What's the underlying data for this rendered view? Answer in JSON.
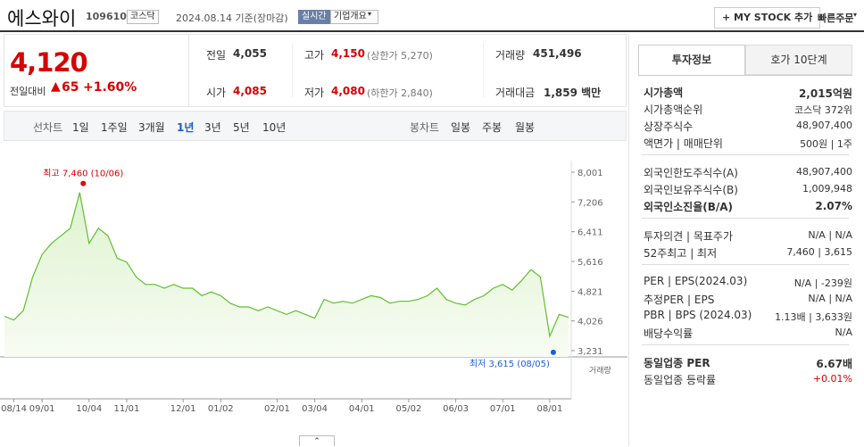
{
  "header": {
    "name": "에스와이",
    "code": "109610",
    "market": "코스닥",
    "date": "2024.08.14 기준(장마감)",
    "realtime": "실시간",
    "overview": "기업개요",
    "my_stock": "+ MY STOCK 추가",
    "quick_order": "빠른주문"
  },
  "quote": {
    "price": "4,120",
    "change_label": "전일대비",
    "change": "65",
    "change_rate": "+1.60%",
    "stats": [
      {
        "label": "전일",
        "value": "4,055"
      },
      {
        "label": "고가",
        "value": "4,150",
        "extra": "(상한가 5,270)"
      },
      {
        "label": "거래량",
        "value": "451,496"
      },
      {
        "label": "시가",
        "value": "4,085"
      },
      {
        "label": "저가",
        "value": "4,080",
        "extra": "(하한가 2,840)"
      },
      {
        "label": "거래대금",
        "value": "1,859 백만"
      }
    ]
  },
  "chart_tabs": {
    "line_label": "선차트",
    "line_periods": [
      "1일",
      "1주일",
      "3개월",
      "1년",
      "3년",
      "5년",
      "10년"
    ],
    "selected": "1년",
    "candle_label": "봉차트",
    "candle_periods": [
      "일봉",
      "주봉",
      "월봉"
    ]
  },
  "chart_data": {
    "type": "line",
    "color": "#5fbf2f",
    "values": [
      4150,
      4050,
      4300,
      5200,
      5800,
      6100,
      6300,
      6500,
      7460,
      6100,
      6500,
      6300,
      5700,
      5600,
      5200,
      5000,
      5000,
      4900,
      5000,
      4900,
      4900,
      4700,
      4800,
      4700,
      4500,
      4400,
      4400,
      4300,
      4400,
      4300,
      4200,
      4300,
      4200,
      4100,
      4600,
      4500,
      4550,
      4500,
      4600,
      4700,
      4650,
      4500,
      4550,
      4550,
      4600,
      4700,
      4900,
      4600,
      4500,
      4450,
      4600,
      4700,
      4900,
      5000,
      4850,
      5100,
      5400,
      5200,
      3615,
      4200,
      4120
    ],
    "ylim": [
      3231,
      8001
    ],
    "yticks": [
      {
        "value": 8001,
        "label": "8,001"
      },
      {
        "value": 7206,
        "label": "7,206"
      },
      {
        "value": 6411,
        "label": "6,411"
      },
      {
        "value": 5616,
        "label": "5,616"
      },
      {
        "value": 4821,
        "label": "4,821"
      },
      {
        "value": 4026,
        "label": "4,026"
      },
      {
        "value": 3231,
        "label": "3,231"
      }
    ],
    "xticks": [
      {
        "value": 1,
        "label": "08/14"
      },
      {
        "value": 4,
        "label": "09/01"
      },
      {
        "value": 9,
        "label": "10/04"
      },
      {
        "value": 13,
        "label": "11/01"
      },
      {
        "value": 19,
        "label": "12/01"
      },
      {
        "value": 23,
        "label": "01/02"
      },
      {
        "value": 29,
        "label": "02/01"
      },
      {
        "value": 33,
        "label": "03/04"
      },
      {
        "value": 38,
        "label": "04/01"
      },
      {
        "value": 43,
        "label": "05/02"
      },
      {
        "value": 48,
        "label": "06/03"
      },
      {
        "value": 53,
        "label": "07/01"
      },
      {
        "value": 58,
        "label": "08/01"
      }
    ],
    "high_label": "최고 7,460 (10/06)",
    "low_label": "최저 3,615 (08/05)",
    "volume_label": "거래량"
  },
  "invest": {
    "tabs": [
      "투자정보",
      "호가 10단계"
    ],
    "groups": [
      [
        {
          "label": "시가총액",
          "value": "2,015억원",
          "bold": true
        },
        {
          "label": "시가총액순위",
          "value": "코스닥 372위"
        },
        {
          "label": "상장주식수",
          "value": "48,907,400"
        },
        {
          "label": "액면가 | 매매단위",
          "value": "500원 | 1주"
        }
      ],
      [
        {
          "label": "외국인한도주식수(A)",
          "value": "48,907,400"
        },
        {
          "label": "외국인보유주식수(B)",
          "value": "1,009,948"
        },
        {
          "label": "외국인소진율(B/A)",
          "value": "2.07%",
          "bold": true
        }
      ],
      [
        {
          "label": "투자의견 | 목표주가",
          "value": "N/A | N/A"
        },
        {
          "label": "52주최고 | 최저",
          "value": "7,460 | 3,615"
        }
      ],
      [
        {
          "label": "PER | EPS(2024.03)",
          "value": "N/A | -239원"
        },
        {
          "label": "추정PER | EPS",
          "value": "N/A | N/A"
        },
        {
          "label": "PBR | BPS (2024.03)",
          "value": "1.13배 | 3,633원"
        },
        {
          "label": "배당수익률",
          "value": "N/A"
        }
      ],
      [
        {
          "label": "동일업종 PER",
          "value": "6.67배",
          "bold": true
        },
        {
          "label": "동일업종 등락률",
          "value": "+0.01%",
          "red": true
        }
      ]
    ]
  }
}
